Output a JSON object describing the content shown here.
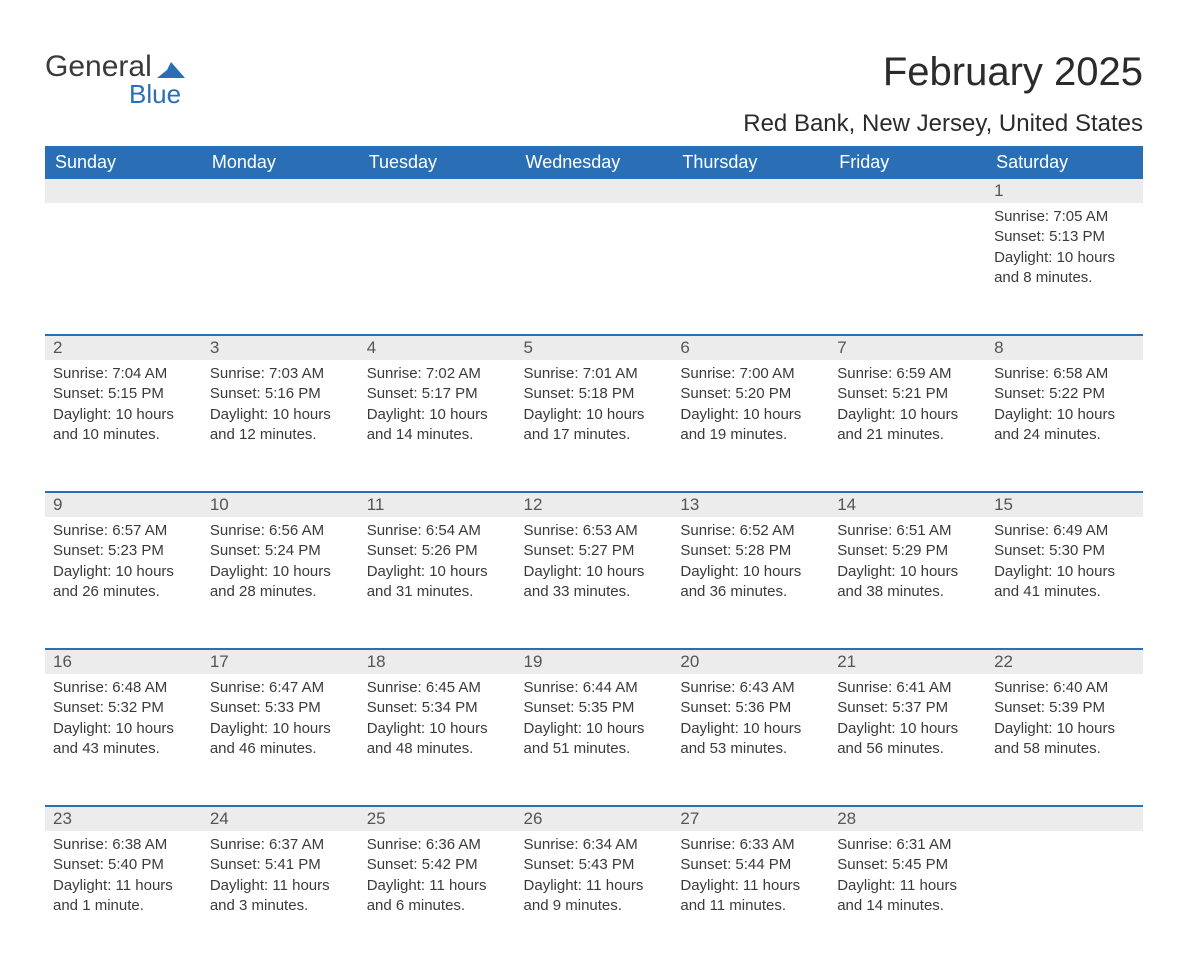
{
  "logo": {
    "word1": "General",
    "word2": "Blue",
    "shape_color": "#2a6fb5"
  },
  "title": "February 2025",
  "subtitle": "Red Bank, New Jersey, United States",
  "colors": {
    "header_bg": "#2a6fb5",
    "header_text": "#ffffff",
    "daynum_bg": "#ececec",
    "row_divider": "#2a6fb5",
    "body_text": "#3a3a3a"
  },
  "weekdays": [
    "Sunday",
    "Monday",
    "Tuesday",
    "Wednesday",
    "Thursday",
    "Friday",
    "Saturday"
  ],
  "weeks": [
    [
      null,
      null,
      null,
      null,
      null,
      null,
      {
        "day": "1",
        "sunrise": "Sunrise: 7:05 AM",
        "sunset": "Sunset: 5:13 PM",
        "daylight": "Daylight: 10 hours and 8 minutes."
      }
    ],
    [
      {
        "day": "2",
        "sunrise": "Sunrise: 7:04 AM",
        "sunset": "Sunset: 5:15 PM",
        "daylight": "Daylight: 10 hours and 10 minutes."
      },
      {
        "day": "3",
        "sunrise": "Sunrise: 7:03 AM",
        "sunset": "Sunset: 5:16 PM",
        "daylight": "Daylight: 10 hours and 12 minutes."
      },
      {
        "day": "4",
        "sunrise": "Sunrise: 7:02 AM",
        "sunset": "Sunset: 5:17 PM",
        "daylight": "Daylight: 10 hours and 14 minutes."
      },
      {
        "day": "5",
        "sunrise": "Sunrise: 7:01 AM",
        "sunset": "Sunset: 5:18 PM",
        "daylight": "Daylight: 10 hours and 17 minutes."
      },
      {
        "day": "6",
        "sunrise": "Sunrise: 7:00 AM",
        "sunset": "Sunset: 5:20 PM",
        "daylight": "Daylight: 10 hours and 19 minutes."
      },
      {
        "day": "7",
        "sunrise": "Sunrise: 6:59 AM",
        "sunset": "Sunset: 5:21 PM",
        "daylight": "Daylight: 10 hours and 21 minutes."
      },
      {
        "day": "8",
        "sunrise": "Sunrise: 6:58 AM",
        "sunset": "Sunset: 5:22 PM",
        "daylight": "Daylight: 10 hours and 24 minutes."
      }
    ],
    [
      {
        "day": "9",
        "sunrise": "Sunrise: 6:57 AM",
        "sunset": "Sunset: 5:23 PM",
        "daylight": "Daylight: 10 hours and 26 minutes."
      },
      {
        "day": "10",
        "sunrise": "Sunrise: 6:56 AM",
        "sunset": "Sunset: 5:24 PM",
        "daylight": "Daylight: 10 hours and 28 minutes."
      },
      {
        "day": "11",
        "sunrise": "Sunrise: 6:54 AM",
        "sunset": "Sunset: 5:26 PM",
        "daylight": "Daylight: 10 hours and 31 minutes."
      },
      {
        "day": "12",
        "sunrise": "Sunrise: 6:53 AM",
        "sunset": "Sunset: 5:27 PM",
        "daylight": "Daylight: 10 hours and 33 minutes."
      },
      {
        "day": "13",
        "sunrise": "Sunrise: 6:52 AM",
        "sunset": "Sunset: 5:28 PM",
        "daylight": "Daylight: 10 hours and 36 minutes."
      },
      {
        "day": "14",
        "sunrise": "Sunrise: 6:51 AM",
        "sunset": "Sunset: 5:29 PM",
        "daylight": "Daylight: 10 hours and 38 minutes."
      },
      {
        "day": "15",
        "sunrise": "Sunrise: 6:49 AM",
        "sunset": "Sunset: 5:30 PM",
        "daylight": "Daylight: 10 hours and 41 minutes."
      }
    ],
    [
      {
        "day": "16",
        "sunrise": "Sunrise: 6:48 AM",
        "sunset": "Sunset: 5:32 PM",
        "daylight": "Daylight: 10 hours and 43 minutes."
      },
      {
        "day": "17",
        "sunrise": "Sunrise: 6:47 AM",
        "sunset": "Sunset: 5:33 PM",
        "daylight": "Daylight: 10 hours and 46 minutes."
      },
      {
        "day": "18",
        "sunrise": "Sunrise: 6:45 AM",
        "sunset": "Sunset: 5:34 PM",
        "daylight": "Daylight: 10 hours and 48 minutes."
      },
      {
        "day": "19",
        "sunrise": "Sunrise: 6:44 AM",
        "sunset": "Sunset: 5:35 PM",
        "daylight": "Daylight: 10 hours and 51 minutes."
      },
      {
        "day": "20",
        "sunrise": "Sunrise: 6:43 AM",
        "sunset": "Sunset: 5:36 PM",
        "daylight": "Daylight: 10 hours and 53 minutes."
      },
      {
        "day": "21",
        "sunrise": "Sunrise: 6:41 AM",
        "sunset": "Sunset: 5:37 PM",
        "daylight": "Daylight: 10 hours and 56 minutes."
      },
      {
        "day": "22",
        "sunrise": "Sunrise: 6:40 AM",
        "sunset": "Sunset: 5:39 PM",
        "daylight": "Daylight: 10 hours and 58 minutes."
      }
    ],
    [
      {
        "day": "23",
        "sunrise": "Sunrise: 6:38 AM",
        "sunset": "Sunset: 5:40 PM",
        "daylight": "Daylight: 11 hours and 1 minute."
      },
      {
        "day": "24",
        "sunrise": "Sunrise: 6:37 AM",
        "sunset": "Sunset: 5:41 PM",
        "daylight": "Daylight: 11 hours and 3 minutes."
      },
      {
        "day": "25",
        "sunrise": "Sunrise: 6:36 AM",
        "sunset": "Sunset: 5:42 PM",
        "daylight": "Daylight: 11 hours and 6 minutes."
      },
      {
        "day": "26",
        "sunrise": "Sunrise: 6:34 AM",
        "sunset": "Sunset: 5:43 PM",
        "daylight": "Daylight: 11 hours and 9 minutes."
      },
      {
        "day": "27",
        "sunrise": "Sunrise: 6:33 AM",
        "sunset": "Sunset: 5:44 PM",
        "daylight": "Daylight: 11 hours and 11 minutes."
      },
      {
        "day": "28",
        "sunrise": "Sunrise: 6:31 AM",
        "sunset": "Sunset: 5:45 PM",
        "daylight": "Daylight: 11 hours and 14 minutes."
      },
      null
    ]
  ]
}
